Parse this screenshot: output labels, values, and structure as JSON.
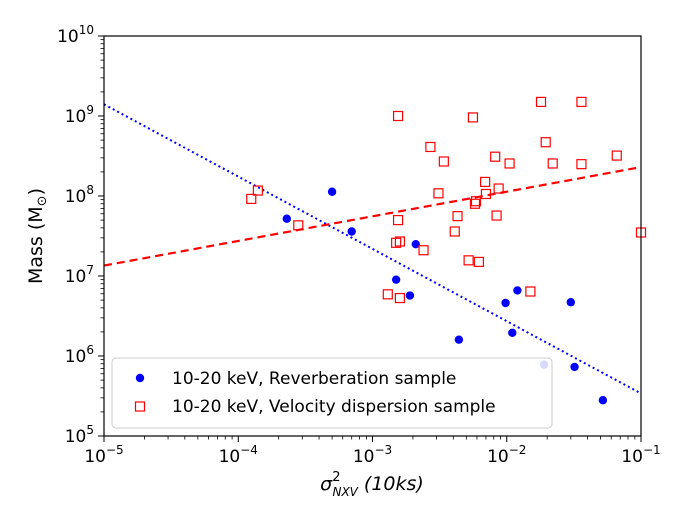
{
  "chart_data": {
    "type": "scatter",
    "xscale": "log",
    "yscale": "log",
    "xlim": [
      1e-05,
      0.1
    ],
    "ylim": [
      100000.0,
      10000000000.0
    ],
    "xlabel_symbol": "σ",
    "xlabel_sup": "2",
    "xlabel_sub": "NXV",
    "xlabel_paren_open": " (10",
    "xlabel_paren_unit": "ks",
    "xlabel_paren_close": ")",
    "ylabel_text": "Mass (M",
    "ylabel_sub": "⊙",
    "ylabel_close": ")",
    "x_ticks": [
      {
        "value": 1e-05,
        "base": "10",
        "exp": "−5"
      },
      {
        "value": 0.0001,
        "base": "10",
        "exp": "−4"
      },
      {
        "value": 0.001,
        "base": "10",
        "exp": "−3"
      },
      {
        "value": 0.01,
        "base": "10",
        "exp": "−2"
      },
      {
        "value": 0.1,
        "base": "10",
        "exp": "−1"
      }
    ],
    "y_ticks": [
      {
        "value": 100000.0,
        "base": "10",
        "exp": "5"
      },
      {
        "value": 1000000.0,
        "base": "10",
        "exp": "6"
      },
      {
        "value": 10000000.0,
        "base": "10",
        "exp": "7"
      },
      {
        "value": 100000000.0,
        "base": "10",
        "exp": "8"
      },
      {
        "value": 1000000000.0,
        "base": "10",
        "exp": "9"
      },
      {
        "value": 10000000000.0,
        "base": "10",
        "exp": "10"
      }
    ],
    "series": [
      {
        "name": "10-20 keV, Reverberation sample",
        "marker": "filled-circle",
        "color": "#0000ff",
        "points": [
          [
            0.00023,
            52000000.0
          ],
          [
            0.0005,
            113000000.0
          ],
          [
            0.0007,
            36000000.0
          ],
          [
            0.0015,
            9000000.0
          ],
          [
            0.0019,
            5700000.0
          ],
          [
            0.0021,
            25000000.0
          ],
          [
            0.0044,
            1600000.0
          ],
          [
            0.0098,
            4600000.0
          ],
          [
            0.011,
            1950000.0
          ],
          [
            0.012,
            6600000.0
          ],
          [
            0.019,
            780000.0
          ],
          [
            0.03,
            4700000.0
          ],
          [
            0.032,
            730000.0
          ],
          [
            0.052,
            280000.0
          ]
        ],
        "fit": {
          "style": "dotted",
          "from": [
            1e-05,
            1400000000.0
          ],
          "to": [
            0.1,
            340000.0
          ]
        }
      },
      {
        "name": "10-20 keV, Velocity dispersion sample",
        "marker": "open-square",
        "color": "#ff0000",
        "points": [
          [
            0.000125,
            92000000.0
          ],
          [
            0.00014,
            117000000.0
          ],
          [
            0.00028,
            43000000.0
          ],
          [
            0.0013,
            5900000.0
          ],
          [
            0.0015,
            26000000.0
          ],
          [
            0.00155,
            50000000.0
          ],
          [
            0.00155,
            1000000000.0
          ],
          [
            0.0016,
            27000000.0
          ],
          [
            0.0016,
            5300000.0
          ],
          [
            0.0024,
            21000000.0
          ],
          [
            0.0027,
            410000000.0
          ],
          [
            0.0031,
            108000000.0
          ],
          [
            0.0034,
            270000000.0
          ],
          [
            0.0041,
            36000000.0
          ],
          [
            0.0043,
            56000000.0
          ],
          [
            0.0052,
            15700000.0
          ],
          [
            0.0056,
            960000000.0
          ],
          [
            0.0058,
            80000000.0
          ],
          [
            0.0059,
            86000000.0
          ],
          [
            0.0062,
            15000000.0
          ],
          [
            0.0069,
            150000000.0
          ],
          [
            0.007,
            106000000.0
          ],
          [
            0.0082,
            310000000.0
          ],
          [
            0.0084,
            57000000.0
          ],
          [
            0.0087,
            124000000.0
          ],
          [
            0.0105,
            255000000.0
          ],
          [
            0.015,
            6400000.0
          ],
          [
            0.018,
            1500000000.0
          ],
          [
            0.0195,
            470000000.0
          ],
          [
            0.022,
            255000000.0
          ],
          [
            0.036,
            1500000000.0
          ],
          [
            0.036,
            250000000.0
          ],
          [
            0.066,
            320000000.0
          ],
          [
            0.1,
            35000000.0
          ]
        ],
        "fit": {
          "style": "dashed",
          "from": [
            1e-05,
            13500000.0
          ],
          "to": [
            0.1,
            230000000.0
          ]
        }
      }
    ],
    "legend_position": "bottom-left",
    "grid": false
  }
}
